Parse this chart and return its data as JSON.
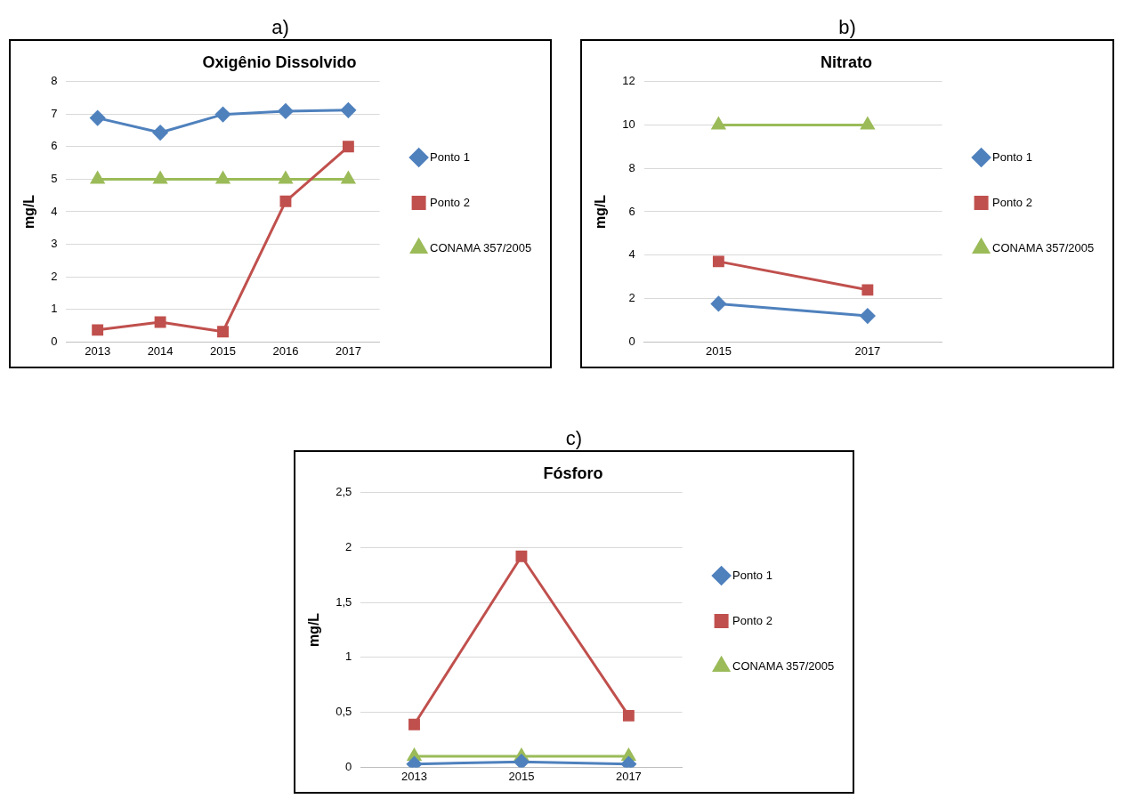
{
  "chart_data": [
    {
      "type": "line",
      "title": "Oxigênio Dissolvido",
      "ylabel": "mg/L",
      "annotations": [
        "a)"
      ],
      "categories": [
        "2013",
        "2014",
        "2015",
        "2016",
        "2017"
      ],
      "ylim": [
        0,
        8
      ],
      "yticks": [
        0,
        1,
        2,
        3,
        4,
        5,
        6,
        7,
        8
      ],
      "grid": "y",
      "legend": "right",
      "series": [
        {
          "name": "Ponto 1",
          "color": "#4f81bd",
          "marker": "diamond",
          "values": [
            6.88,
            6.43,
            6.99,
            7.09,
            7.12
          ]
        },
        {
          "name": "Ponto 2",
          "color": "#c0504d",
          "marker": "square",
          "values": [
            0.37,
            0.61,
            0.32,
            4.32,
            6.0
          ]
        },
        {
          "name": "CONAMA 357/2005",
          "color": "#9bbb59",
          "marker": "triangle",
          "values": [
            5,
            5,
            5,
            5,
            5
          ]
        }
      ]
    },
    {
      "type": "line",
      "title": "Nitrato",
      "ylabel": "mg/L",
      "annotations": [
        "b)"
      ],
      "categories": [
        "2015",
        "2017"
      ],
      "ylim": [
        0,
        12
      ],
      "yticks": [
        0,
        2,
        4,
        6,
        8,
        10,
        12
      ],
      "grid": "y",
      "legend": "right",
      "series": [
        {
          "name": "Ponto 1",
          "color": "#4f81bd",
          "marker": "diamond",
          "values": [
            1.76,
            1.2
          ]
        },
        {
          "name": "Ponto 2",
          "color": "#c0504d",
          "marker": "square",
          "values": [
            3.71,
            2.4
          ]
        },
        {
          "name": "CONAMA 357/2005",
          "color": "#9bbb59",
          "marker": "triangle",
          "values": [
            10,
            10
          ]
        }
      ]
    },
    {
      "type": "line",
      "title": "Fósforo",
      "ylabel": "mg/L",
      "annotations": [
        "c)"
      ],
      "categories": [
        "2013",
        "2015",
        "2017"
      ],
      "ylim": [
        0,
        2.5
      ],
      "yticks": [
        0,
        {
          "value": 0.5,
          "label": "0,5"
        },
        1,
        {
          "value": 1.5,
          "label": "1,5"
        },
        2,
        {
          "value": 2.5,
          "label": "2,5"
        }
      ],
      "grid": "y",
      "legend": "right",
      "series": [
        {
          "name": "Ponto 1",
          "color": "#4f81bd",
          "marker": "diamond",
          "values": [
            0.03,
            0.05,
            0.03
          ]
        },
        {
          "name": "Ponto 2",
          "color": "#c0504d",
          "marker": "square",
          "values": [
            0.39,
            1.92,
            0.47
          ]
        },
        {
          "name": "CONAMA 357/2005",
          "color": "#9bbb59",
          "marker": "triangle",
          "values": [
            0.1,
            0.1,
            0.1
          ]
        }
      ]
    }
  ]
}
